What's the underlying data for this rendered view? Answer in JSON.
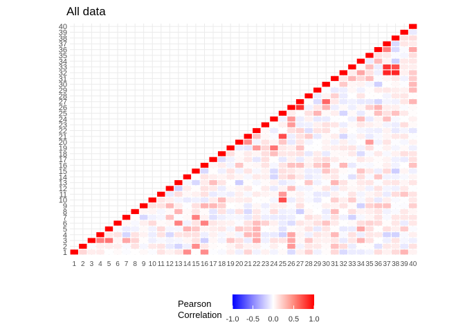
{
  "chart_data": {
    "type": "heatmap",
    "title": "All data",
    "labels": [
      "1",
      "2",
      "3",
      "4",
      "5",
      "6",
      "7",
      "8",
      "9",
      "10",
      "11",
      "12",
      "13",
      "14",
      "15",
      "16",
      "17",
      "18",
      "19",
      "20",
      "21",
      "22",
      "23",
      "24",
      "25",
      "26",
      "27",
      "28",
      "29",
      "30",
      "31",
      "32",
      "33",
      "34",
      "35",
      "36",
      "37",
      "38",
      "39",
      "40"
    ],
    "layout": "upper-triangle",
    "grid": true,
    "legend": {
      "title_line1": "Pearson",
      "title_line2": "Correlation",
      "ticks": [
        "-1.0",
        "-0.5",
        "0.0",
        "0.5",
        "1.0"
      ],
      "tick_values": [
        -1.0,
        -0.5,
        0.0,
        0.5,
        1.0
      ],
      "range": [
        -1.0,
        1.0
      ],
      "placement": "bottom"
    },
    "colors": {
      "low": "#0000ff",
      "mid": "#ffffff",
      "high": "#ff0000"
    },
    "diagonal_value": 1.0,
    "strong_cells": [
      [
        26,
        27,
        0.8
      ],
      [
        32,
        37,
        0.85
      ],
      [
        32,
        38,
        0.85
      ],
      [
        33,
        37,
        0.8
      ],
      [
        33,
        38,
        0.7
      ],
      [
        21,
        25,
        0.7
      ],
      [
        10,
        25,
        0.7
      ],
      [
        30,
        27,
        0.6
      ],
      [
        19,
        24,
        0.55
      ],
      [
        36,
        37,
        0.5
      ],
      [
        19,
        22,
        0.4
      ],
      [
        21,
        20,
        0.45
      ],
      [
        3,
        5,
        0.55
      ],
      [
        3,
        4,
        0.5
      ],
      [
        6,
        13,
        0.5
      ],
      [
        6,
        16,
        0.5
      ],
      [
        7,
        15,
        0.5
      ],
      [
        1,
        14,
        0.45
      ],
      [
        1,
        16,
        0.45
      ],
      [
        2,
        15,
        0.45
      ],
      [
        11,
        25,
        0.4
      ],
      [
        36,
        40,
        0.35
      ],
      [
        26,
        23,
        0.4
      ],
      [
        26,
        24,
        0.4
      ],
      [
        26,
        36,
        0.3
      ],
      [
        26,
        30,
        0.3
      ],
      [
        22,
        40,
        -0.1
      ],
      [
        20,
        35,
        0.4
      ],
      [
        32,
        34,
        0.35
      ],
      [
        33,
        35,
        0.25
      ],
      [
        9,
        16,
        0.3
      ],
      [
        3,
        22,
        0.35
      ],
      [
        4,
        22,
        0.3
      ],
      [
        5,
        22,
        0.3
      ],
      [
        2,
        26,
        0.4
      ],
      [
        3,
        26,
        0.35
      ],
      [
        4,
        26,
        0.35
      ],
      [
        5,
        34,
        0.35
      ],
      [
        3,
        34,
        0.3
      ],
      [
        8,
        13,
        0.3
      ],
      [
        5,
        14,
        0.3
      ],
      [
        3,
        7,
        0.35
      ]
    ]
  }
}
